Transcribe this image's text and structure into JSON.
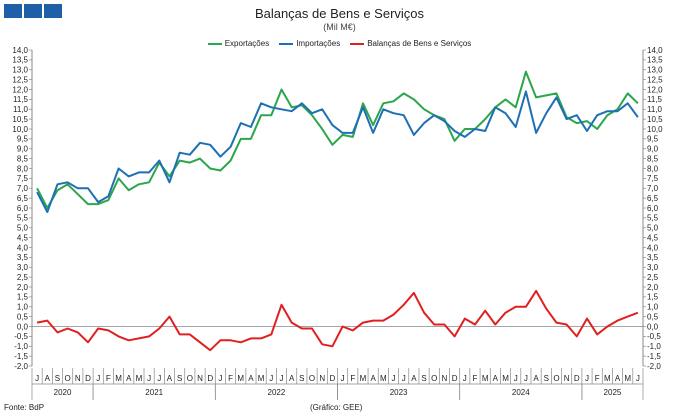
{
  "logo": {
    "name": "bdp-logo",
    "color": "#1f5fa8"
  },
  "chart_data": {
    "type": "line",
    "title": "Balanças de Bens e Serviços",
    "subtitle": "(Mil M€)",
    "legend_position": "top-center",
    "grid": false,
    "ylim": [
      -2.0,
      14.0
    ],
    "y_ticks": [
      "-2,0",
      "-1,5",
      "-1,0",
      "-0,5",
      "0,0",
      "0,5",
      "1,0",
      "1,5",
      "2,0",
      "2,5",
      "3,0",
      "3,5",
      "4,0",
      "4,5",
      "5,0",
      "5,5",
      "6,0",
      "6,5",
      "7,0",
      "7,5",
      "8,0",
      "8,5",
      "9,0",
      "9,5",
      "10,0",
      "10,5",
      "11,0",
      "11,5",
      "12,0",
      "12,5",
      "13,0",
      "13,5",
      "14,0"
    ],
    "month_labels": [
      "J",
      "A",
      "S",
      "O",
      "N",
      "D",
      "J",
      "F",
      "M",
      "A",
      "M",
      "J",
      "J",
      "A",
      "S",
      "O",
      "N",
      "D",
      "J",
      "F",
      "M",
      "A",
      "M",
      "J",
      "J",
      "A",
      "S",
      "O",
      "N",
      "D",
      "J",
      "F",
      "M",
      "A",
      "M",
      "J",
      "J",
      "A",
      "S",
      "O",
      "N",
      "D",
      "J",
      "F",
      "M",
      "A",
      "M",
      "J",
      "J",
      "A",
      "S",
      "O",
      "N",
      "D",
      "J",
      "F",
      "M",
      "A",
      "M",
      "J"
    ],
    "years": [
      {
        "label": "2020",
        "start": 0,
        "end": 5
      },
      {
        "label": "2021",
        "start": 6,
        "end": 17
      },
      {
        "label": "2022",
        "start": 18,
        "end": 29
      },
      {
        "label": "2023",
        "start": 30,
        "end": 41
      },
      {
        "label": "2024",
        "start": 42,
        "end": 53
      },
      {
        "label": "2025",
        "start": 54,
        "end": 59
      }
    ],
    "series": [
      {
        "name": "Exportações",
        "color": "#2ca64b",
        "values": [
          7.0,
          6.0,
          6.9,
          7.2,
          6.7,
          6.2,
          6.2,
          6.4,
          7.5,
          6.9,
          7.2,
          7.3,
          8.3,
          7.6,
          8.4,
          8.3,
          8.5,
          8.0,
          7.9,
          8.4,
          9.5,
          9.5,
          10.7,
          10.7,
          12.0,
          11.1,
          11.2,
          10.7,
          10.0,
          9.2,
          9.7,
          9.6,
          11.3,
          10.2,
          11.3,
          11.4,
          11.8,
          11.5,
          11.0,
          10.7,
          10.5,
          9.4,
          10.0,
          10.0,
          10.5,
          11.1,
          11.5,
          11.1,
          12.9,
          11.6,
          11.7,
          11.8,
          10.6,
          10.3,
          10.4,
          10.0,
          10.7,
          11.0,
          11.8,
          11.3
        ]
      },
      {
        "name": "Importações",
        "color": "#1f6fb5",
        "values": [
          6.8,
          5.8,
          7.2,
          7.3,
          7.0,
          7.0,
          6.3,
          6.6,
          8.0,
          7.6,
          7.8,
          7.8,
          8.4,
          7.3,
          8.8,
          8.7,
          9.3,
          9.2,
          8.6,
          9.1,
          10.3,
          10.1,
          11.3,
          11.1,
          11.0,
          10.9,
          11.3,
          10.8,
          11.0,
          10.2,
          9.8,
          9.8,
          11.1,
          9.8,
          11.0,
          10.8,
          10.7,
          9.7,
          10.3,
          10.7,
          10.4,
          9.9,
          9.6,
          10.0,
          9.9,
          11.1,
          10.8,
          10.1,
          11.9,
          9.8,
          10.8,
          11.6,
          10.5,
          10.7,
          9.9,
          10.7,
          10.9,
          10.9,
          11.3,
          10.6
        ]
      },
      {
        "name": "Balanças de Bens e Serviços",
        "color": "#e02020",
        "values": [
          0.2,
          0.3,
          -0.3,
          -0.1,
          -0.3,
          -0.8,
          -0.1,
          -0.2,
          -0.5,
          -0.7,
          -0.6,
          -0.5,
          -0.1,
          0.5,
          -0.4,
          -0.4,
          -0.8,
          -1.2,
          -0.7,
          -0.7,
          -0.8,
          -0.6,
          -0.6,
          -0.4,
          1.1,
          0.2,
          -0.1,
          -0.1,
          -0.9,
          -1.0,
          0.0,
          -0.2,
          0.2,
          0.3,
          0.3,
          0.6,
          1.1,
          1.7,
          0.7,
          0.1,
          0.1,
          -0.5,
          0.4,
          0.1,
          0.8,
          0.1,
          0.7,
          1.0,
          1.0,
          1.8,
          0.9,
          0.2,
          0.1,
          -0.5,
          0.4,
          -0.4,
          0.0,
          0.3,
          0.5,
          0.7
        ]
      }
    ]
  },
  "footer": {
    "source": "Fonte: BdP",
    "credit": "(Gráfico: GEE)"
  }
}
